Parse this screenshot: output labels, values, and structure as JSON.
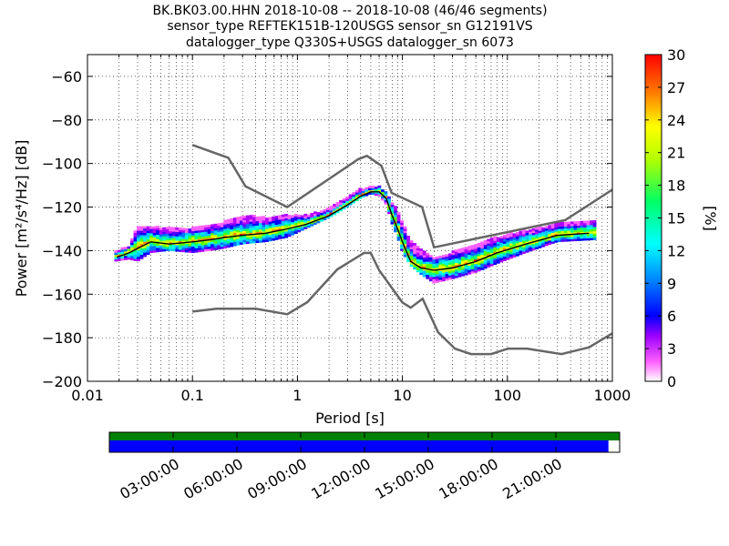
{
  "title_lines": [
    "BK.BK03.00.HHN   2018-10-08 -- 2018-10-08  (46/46 segments)",
    "sensor_type REFTEK151B-120USGS sensor_sn G12191VS",
    "datalogger_type Q330S+USGS datalogger_sn 6073"
  ],
  "chart_data": {
    "type": "heatmap",
    "xlabel": "Period [s]",
    "ylabel": "Power [m²/s⁴/Hz] [dB]",
    "x_scale": "log",
    "xlim": [
      0.01,
      1000
    ],
    "ylim": [
      -200,
      -50
    ],
    "x_ticks": [
      0.01,
      0.1,
      1,
      10,
      100,
      1000
    ],
    "x_tick_labels": [
      "0.01",
      "0.1",
      "1",
      "10",
      "100",
      "1000"
    ],
    "y_ticks": [
      -200,
      -180,
      -160,
      -140,
      -120,
      -100,
      -80,
      -60
    ],
    "y_tick_labels": [
      "−200",
      "−180",
      "−160",
      "−140",
      "−120",
      "−100",
      "−80",
      "−60"
    ],
    "grid": true,
    "colorbar": {
      "label": "[%]",
      "range": [
        0,
        30
      ],
      "ticks": [
        0,
        3,
        6,
        9,
        12,
        15,
        18,
        21,
        24,
        27,
        30
      ]
    },
    "noise_models": {
      "high": {
        "period": [
          0.1,
          0.22,
          0.32,
          0.8,
          3.8,
          4.6,
          6.3,
          7.9,
          15.4,
          20,
          354.8,
          1000
        ],
        "db": [
          -91.5,
          -97.4,
          -110.5,
          -120,
          -98,
          -96.5,
          -101,
          -113.5,
          -120,
          -138.5,
          -126,
          -112
        ]
      },
      "low": {
        "period": [
          0.1,
          0.17,
          0.4,
          0.8,
          1.24,
          2.4,
          4.3,
          5,
          6,
          10,
          12,
          15.6,
          21.9,
          31.6,
          45,
          70,
          101,
          154,
          328,
          600,
          1000
        ],
        "db": [
          -168,
          -166.7,
          -166.7,
          -169.2,
          -163.7,
          -148.6,
          -141.1,
          -141.1,
          -149,
          -163.8,
          -166.2,
          -162.1,
          -177.5,
          -185,
          -187.5,
          -187.5,
          -185,
          -185,
          -187.5,
          -184.4,
          -178
        ]
      }
    },
    "mode_curve": {
      "period": [
        0.019,
        0.025,
        0.03,
        0.04,
        0.06,
        0.1,
        0.15,
        0.2,
        0.3,
        0.5,
        0.8,
        1.2,
        2,
        3,
        4,
        5,
        6,
        7,
        8,
        9,
        10,
        12,
        15,
        20,
        30,
        50,
        80,
        150,
        300,
        600
      ],
      "db": [
        -143,
        -141,
        -139,
        -136,
        -137,
        -136,
        -135,
        -134,
        -133,
        -132,
        -130,
        -128,
        -124,
        -119,
        -115,
        -113,
        -113,
        -116,
        -124,
        -130,
        -136,
        -145,
        -148,
        -149,
        -148,
        -145,
        -141,
        -137,
        -133,
        -132
      ]
    },
    "heatmap_band": {
      "period": [
        0.018,
        0.025,
        0.03,
        0.04,
        0.06,
        0.1,
        0.15,
        0.2,
        0.3,
        0.5,
        0.8,
        1.2,
        2,
        3,
        4,
        5,
        6,
        7,
        8,
        9,
        10,
        12,
        15,
        20,
        30,
        50,
        80,
        150,
        300,
        700
      ],
      "upper_db": [
        -141,
        -138,
        -129,
        -129,
        -130,
        -130,
        -129,
        -127,
        -124,
        -125,
        -124,
        -124,
        -121,
        -115,
        -112,
        -111,
        -111,
        -113,
        -118,
        -122,
        -127,
        -136,
        -140,
        -144,
        -141,
        -138,
        -134,
        -131,
        -128,
        -126
      ],
      "lower_db": [
        -145,
        -144,
        -145,
        -141,
        -140,
        -141,
        -140,
        -139,
        -137,
        -136,
        -134,
        -130,
        -125,
        -120,
        -116,
        -114,
        -115,
        -119,
        -128,
        -134,
        -141,
        -147,
        -151,
        -155,
        -153,
        -150,
        -146,
        -141,
        -136,
        -135
      ]
    },
    "coverage": {
      "time_tick_labels": [
        "03:00:00",
        "06:00:00",
        "09:00:00",
        "12:00:00",
        "15:00:00",
        "18:00:00",
        "21:00:00"
      ],
      "data_fraction": 0.978,
      "colors": {
        "segments": "#008000",
        "data": "#0000ff"
      }
    }
  }
}
